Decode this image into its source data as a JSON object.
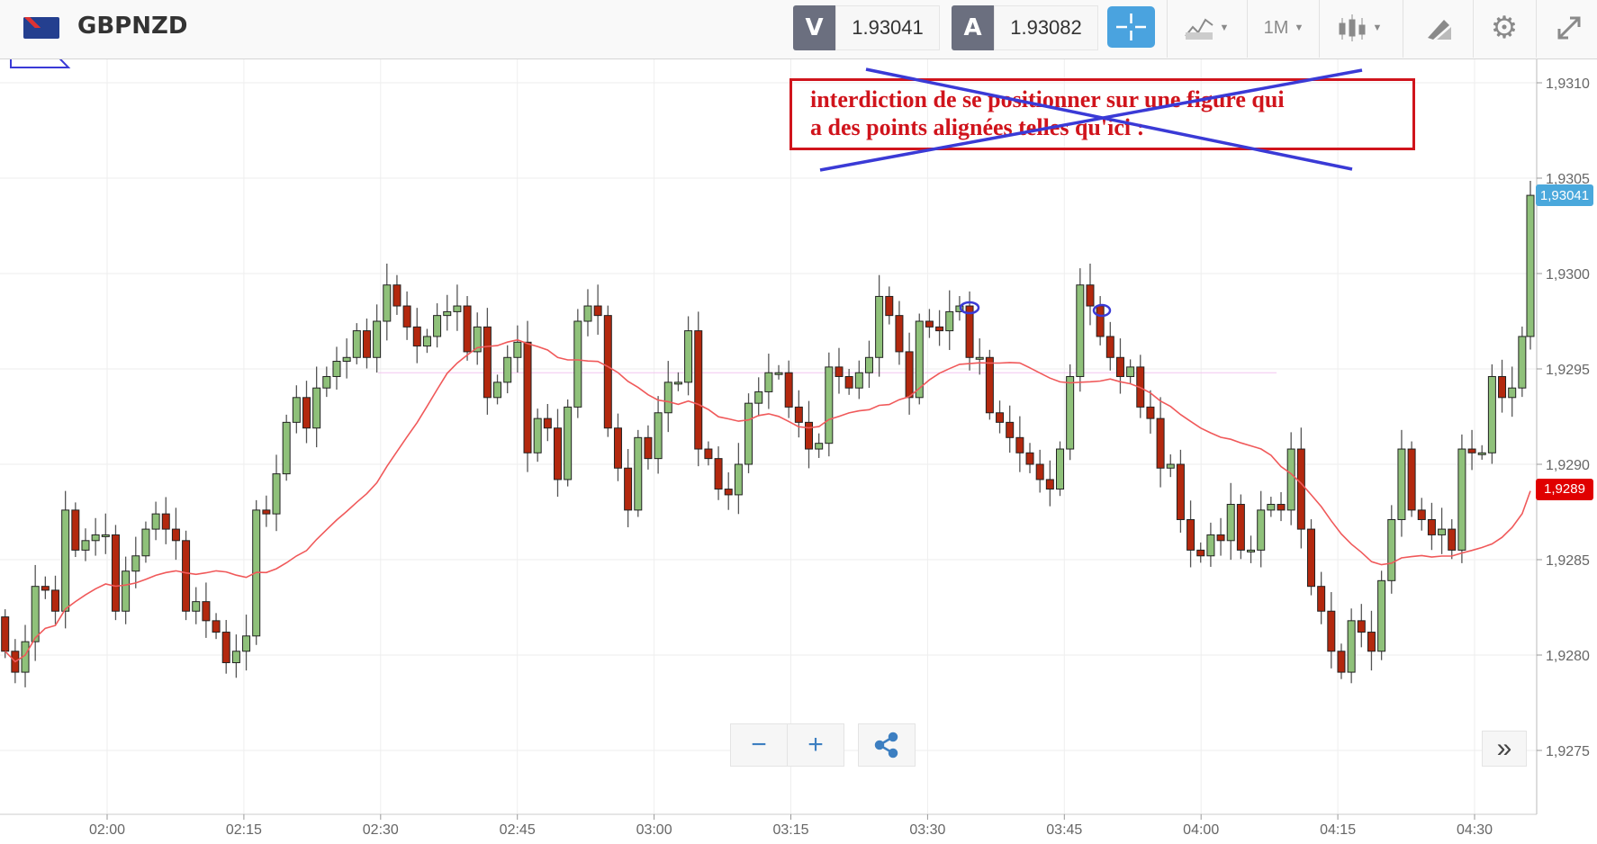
{
  "header": {
    "symbol": "GBPNZD",
    "flag_icon": "gb-nz-flag-icon",
    "sell_label": "V",
    "sell_price": "1.93041",
    "buy_label": "A",
    "buy_price": "1.93082",
    "timeframe": "1M",
    "icons": [
      "crosshair-icon",
      "line-chart-icon",
      "candlestick-icon",
      "draw-icon",
      "gear-icon",
      "expand-icon"
    ]
  },
  "annotation": {
    "text_line1": "interdiction de se positionner sur une figure qui",
    "text_line2": "a des points alignées telles qu'ici :",
    "box_color": "#d0141c",
    "drawing_color": "#3a3ad6"
  },
  "controls": {
    "zoom_out": "−",
    "zoom_in": "+",
    "scroll_right": "»"
  },
  "chart_data": {
    "type": "candlestick",
    "colors": {
      "up": "#8fc17a",
      "down": "#b3280e",
      "ma": "#f0595a",
      "last_price_tag": "#4aa8dc",
      "ma_tag": "#e00000"
    },
    "y_ticks": [
      "1,9310",
      "1,9305",
      "1,9300",
      "1,9295",
      "1,9290",
      "1,9285",
      "1,9280",
      "1,9275"
    ],
    "y_tick_values": [
      1.931,
      1.9305,
      1.93,
      1.9295,
      1.929,
      1.9285,
      1.928,
      1.9275
    ],
    "ylim": [
      1.92725,
      1.93115
    ],
    "x_ticks": [
      "02:00",
      "02:15",
      "02:30",
      "02:45",
      "03:00",
      "03:15",
      "03:30",
      "03:45",
      "04:00",
      "04:15",
      "04:30"
    ],
    "grid": true,
    "closes": [
      1.92802,
      1.92791,
      1.92807,
      1.92836,
      1.92834,
      1.92823,
      1.92876,
      1.92855,
      1.9286,
      1.92863,
      1.92863,
      1.92823,
      1.92844,
      1.92852,
      1.92866,
      1.92874,
      1.92866,
      1.9286,
      1.92823,
      1.92828,
      1.92818,
      1.92812,
      1.92796,
      1.92802,
      1.9281,
      1.92876,
      1.92874,
      1.92895,
      1.92922,
      1.92935,
      1.92919,
      1.9294,
      1.92946,
      1.92954,
      1.92956,
      1.9297,
      1.92956,
      1.92975,
      1.92994,
      1.92983,
      1.92972,
      1.92962,
      1.92967,
      1.92978,
      1.9298,
      1.92983,
      1.92959,
      1.92972,
      1.92935,
      1.92943,
      1.92956,
      1.92964,
      1.92906,
      1.92924,
      1.92919,
      1.92892,
      1.9293,
      1.92975,
      1.92983,
      1.92978,
      1.92919,
      1.92898,
      1.92876,
      1.92914,
      1.92903,
      1.92927,
      1.92943,
      1.92943,
      1.9297,
      1.92908,
      1.92903,
      1.92887,
      1.92884,
      1.929,
      1.92932,
      1.92938,
      1.92948,
      1.92948,
      1.9293,
      1.92922,
      1.92908,
      1.92911,
      1.92951,
      1.92946,
      1.9294,
      1.92948,
      1.92956,
      1.92988,
      1.92978,
      1.92959,
      1.92935,
      1.92975,
      1.92972,
      1.9297,
      1.9298,
      1.92983,
      1.92956,
      1.92956,
      1.92927,
      1.92922,
      1.92914,
      1.92906,
      1.929,
      1.92892,
      1.92887,
      1.92908,
      1.92946,
      1.92994,
      1.92983,
      1.92967,
      1.92956,
      1.92946,
      1.92951,
      1.9293,
      1.92924,
      1.92898,
      1.929,
      1.92871,
      1.92855,
      1.92852,
      1.92863,
      1.9286,
      1.92879,
      1.92855,
      1.92855,
      1.92876,
      1.92879,
      1.92876,
      1.92908,
      1.92866,
      1.92836,
      1.92823,
      1.92802,
      1.92791,
      1.92818,
      1.92812,
      1.92802,
      1.92839,
      1.92871,
      1.92908,
      1.92876,
      1.92871,
      1.92863,
      1.92866,
      1.92855,
      1.92908,
      1.92906,
      1.92906,
      1.92946,
      1.92935,
      1.9294,
      1.92967,
      1.93041
    ],
    "last_price_label": "1,93041",
    "ma_label": "1,9289",
    "horizontal_line": 1.92948
  }
}
